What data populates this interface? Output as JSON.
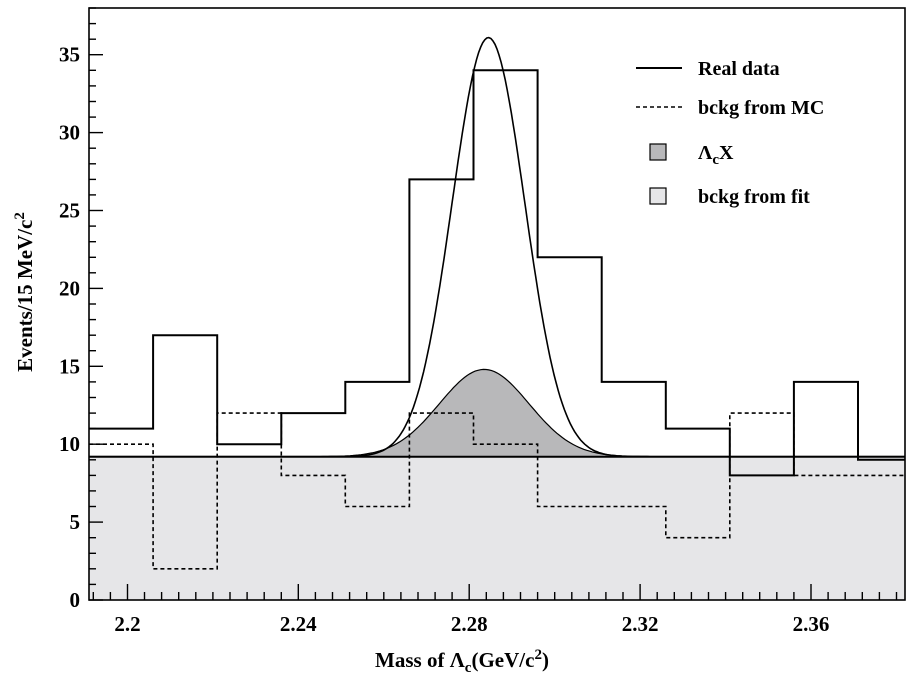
{
  "chart_data": {
    "type": "histogram",
    "xlabel": {
      "prefix": "Mass of ",
      "symbol": "Λ",
      "sub": "c",
      "unit_open": "(GeV/c",
      "sup": "2",
      "unit_close": ")"
    },
    "ylabel": {
      "text": "Events/15 MeV/c",
      "sup": "2"
    },
    "xlim": [
      2.191,
      2.382
    ],
    "ylim": [
      0,
      38
    ],
    "x_ticks": [
      2.2,
      2.24,
      2.28,
      2.32,
      2.36
    ],
    "x_tick_labels": [
      "2.2",
      "2.24",
      "2.28",
      "2.32",
      "2.36"
    ],
    "y_ticks": [
      0,
      5,
      10,
      15,
      20,
      25,
      30,
      35
    ],
    "y_tick_labels": [
      "0",
      "5",
      "10",
      "15",
      "20",
      "25",
      "30",
      "35"
    ],
    "bin_edges": [
      2.191,
      2.206,
      2.221,
      2.236,
      2.251,
      2.266,
      2.281,
      2.296,
      2.311,
      2.326,
      2.341,
      2.356,
      2.371,
      2.382
    ],
    "series": [
      {
        "name": "Real data",
        "style": "solid-step",
        "values": [
          11,
          17,
          10,
          12,
          14,
          27,
          34,
          22,
          14,
          11,
          8,
          14,
          9
        ]
      },
      {
        "name": "bckg from MC",
        "style": "dashed-step",
        "values": [
          10,
          2,
          12,
          8,
          6,
          12,
          10,
          6,
          6,
          4,
          12,
          8,
          8
        ]
      }
    ],
    "fit": {
      "type": "gaussian+constant",
      "mean": 2.2845,
      "sigma": 0.0085,
      "amplitude": 26.9,
      "background": 9.2,
      "label": "Real data"
    },
    "signal_component": {
      "name": "ΛcX",
      "mean": 2.2835,
      "sigma": 0.0105,
      "amplitude": 5.6,
      "base": 9.2,
      "color": "#b8b8ba"
    },
    "background_fit": {
      "name": "bckg from fit",
      "level": 9.2,
      "color": "#e6e6e8"
    },
    "legend": {
      "position": "top-right",
      "items": [
        {
          "label": "Real data",
          "marker": "solid-line"
        },
        {
          "label": "bckg from MC",
          "marker": "dashed-line"
        },
        {
          "label_symbol": "Λ",
          "label_sub": "c",
          "label_rest": "X",
          "marker": "dark-box"
        },
        {
          "label": "bckg from fit",
          "marker": "light-box"
        }
      ]
    }
  }
}
